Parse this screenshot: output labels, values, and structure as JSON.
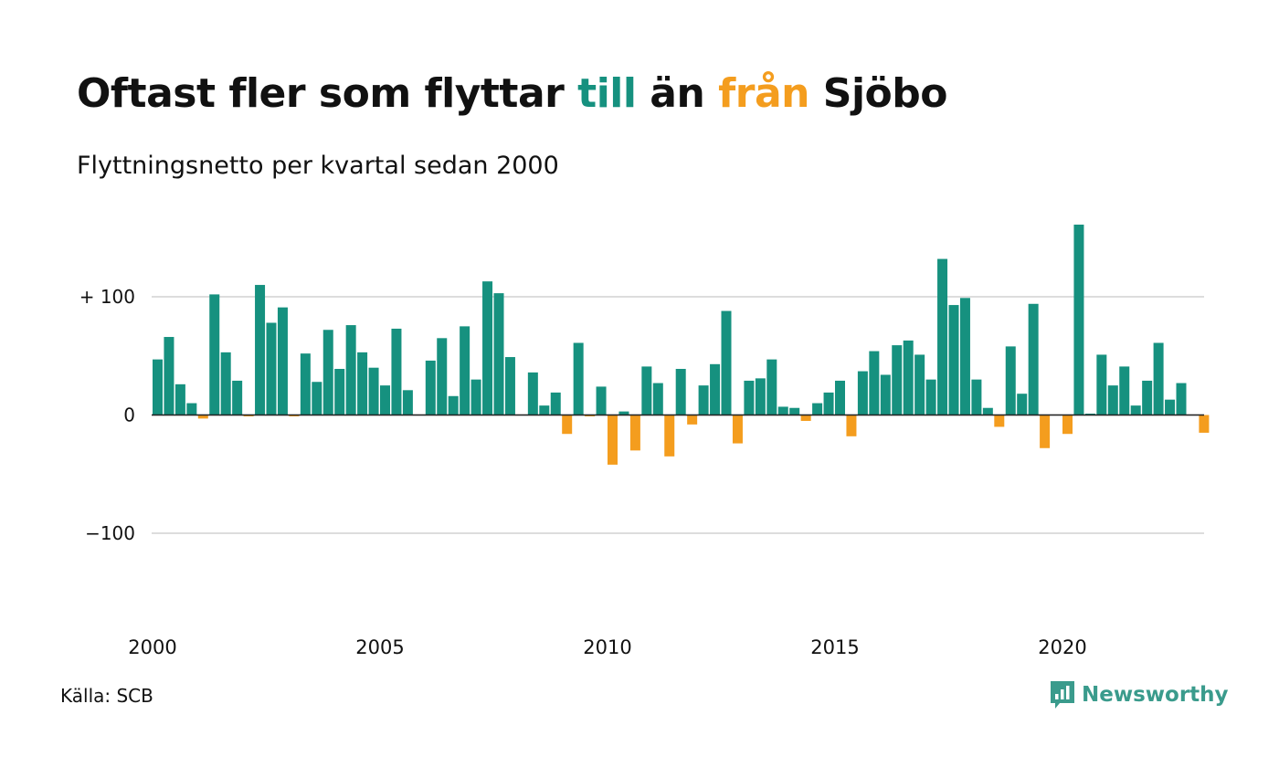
{
  "title": {
    "part1": "Oftast fler som flyttar ",
    "pos_word": "till",
    "part2": " än ",
    "neg_word": "från",
    "part3": " Sjöbo"
  },
  "subtitle": "Flyttningsnetto per kvartal sedan 2000",
  "source": "Källa: SCB",
  "brand": {
    "name": "Newsworthy",
    "icon": "newsworthy-logo-icon"
  },
  "colors": {
    "positive": "#16917f",
    "negative": "#f49d1e",
    "grid": "#dddddd",
    "text": "#111111",
    "brand": "#3a9b8c"
  },
  "chart_data": {
    "type": "bar",
    "x_start": "2000 Q1",
    "x_ticks": [
      "2000",
      "2005",
      "2010",
      "2015",
      "2020"
    ],
    "y_ticks": [
      {
        "value": 100,
        "label": "+ 100"
      },
      {
        "value": 0,
        "label": "0"
      },
      {
        "value": -100,
        "label": "−100"
      }
    ],
    "ylim": [
      -180,
      170
    ],
    "grid": true,
    "categories": [
      "2000 Q1",
      "2000 Q2",
      "2000 Q3",
      "2000 Q4",
      "2001 Q1",
      "2001 Q2",
      "2001 Q3",
      "2001 Q4",
      "2002 Q1",
      "2002 Q2",
      "2002 Q3",
      "2002 Q4",
      "2003 Q1",
      "2003 Q2",
      "2003 Q3",
      "2003 Q4",
      "2004 Q1",
      "2004 Q2",
      "2004 Q3",
      "2004 Q4",
      "2005 Q1",
      "2005 Q2",
      "2005 Q3",
      "2005 Q4",
      "2006 Q1",
      "2006 Q2",
      "2006 Q3",
      "2006 Q4",
      "2007 Q1",
      "2007 Q2",
      "2007 Q3",
      "2007 Q4",
      "2008 Q1",
      "2008 Q2",
      "2008 Q3",
      "2008 Q4",
      "2009 Q1",
      "2009 Q2",
      "2009 Q3",
      "2009 Q4",
      "2010 Q1",
      "2010 Q2",
      "2010 Q3",
      "2010 Q4",
      "2011 Q1",
      "2011 Q2",
      "2011 Q3",
      "2011 Q4",
      "2012 Q1",
      "2012 Q2",
      "2012 Q3",
      "2012 Q4",
      "2013 Q1",
      "2013 Q2",
      "2013 Q3",
      "2013 Q4",
      "2014 Q1",
      "2014 Q2",
      "2014 Q3",
      "2014 Q4",
      "2015 Q1",
      "2015 Q2",
      "2015 Q3",
      "2015 Q4",
      "2016 Q1",
      "2016 Q2",
      "2016 Q3",
      "2016 Q4",
      "2017 Q1",
      "2017 Q2",
      "2017 Q3",
      "2017 Q4",
      "2018 Q1",
      "2018 Q2",
      "2018 Q3",
      "2018 Q4",
      "2019 Q1",
      "2019 Q2",
      "2019 Q3",
      "2019 Q4",
      "2020 Q1",
      "2020 Q2",
      "2020 Q3",
      "2020 Q4",
      "2021 Q1",
      "2021 Q2",
      "2021 Q3",
      "2021 Q4",
      "2022 Q1",
      "2022 Q2",
      "2022 Q3",
      "2022 Q4",
      "2023 Q1"
    ],
    "values": [
      47,
      66,
      26,
      10,
      -3,
      102,
      53,
      29,
      -1,
      110,
      78,
      91,
      -1,
      52,
      28,
      72,
      39,
      76,
      53,
      40,
      25,
      73,
      21,
      0,
      46,
      65,
      16,
      75,
      30,
      113,
      103,
      49,
      0,
      36,
      8,
      19,
      -16,
      61,
      -1,
      24,
      -42,
      3,
      -30,
      41,
      27,
      -35,
      39,
      -8,
      25,
      43,
      88,
      -24,
      29,
      31,
      47,
      7,
      6,
      -5,
      10,
      19,
      29,
      -18,
      37,
      54,
      34,
      59,
      63,
      51,
      30,
      132,
      93,
      99,
      30,
      6,
      -10,
      58,
      18,
      94,
      -28,
      0,
      -16,
      161,
      1,
      51,
      25,
      41,
      8,
      29,
      61,
      13,
      27,
      0,
      -15
    ]
  }
}
